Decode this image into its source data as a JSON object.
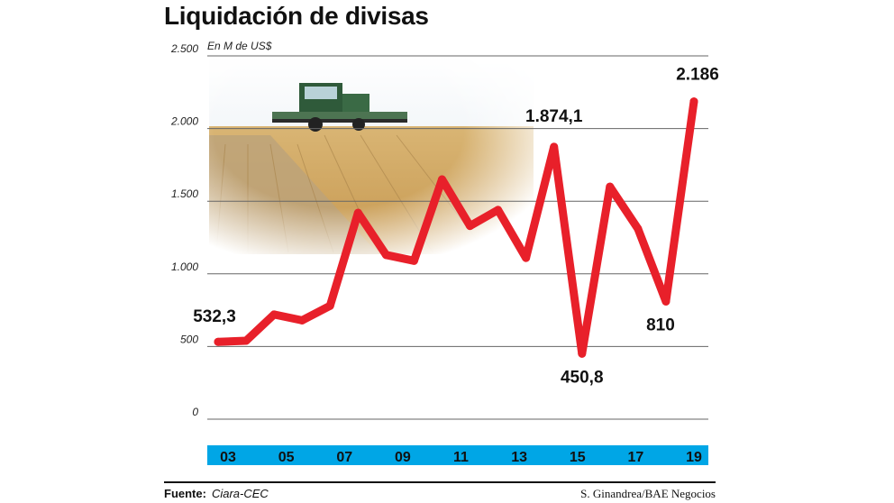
{
  "title": "Liquidación de divisas",
  "unit": "En M de US$",
  "source": {
    "label": "Fuente:",
    "value": "Ciara-CEC"
  },
  "credit": "S. Ginandrea/BAE Negocios",
  "colors": {
    "line": "#e8202a",
    "axis_band": "#00a6e6",
    "grid": "#666666"
  },
  "chart_data": {
    "type": "line",
    "title": "Liquidación de divisas",
    "ylabel": "En M de US$",
    "ylim": [
      0,
      2500
    ],
    "yticks": [
      0,
      500,
      1000,
      1500,
      2000,
      2500
    ],
    "ytick_labels": [
      "0",
      "500",
      "1.000",
      "1.500",
      "2.000",
      "2.500"
    ],
    "x_tick_labels": [
      "03",
      "05",
      "07",
      "09",
      "11",
      "13",
      "15",
      "17",
      "19"
    ],
    "grid": true,
    "series": [
      {
        "values": [
          532.3,
          540,
          720,
          680,
          780,
          1420,
          1130,
          1090,
          1650,
          1330,
          1440,
          1110,
          1874.1,
          450.8,
          1600,
          1310,
          810,
          2186
        ]
      }
    ],
    "data_labels": [
      {
        "index": 0,
        "text": "532,3"
      },
      {
        "index": 12,
        "text": "1.874,1"
      },
      {
        "index": 13,
        "text": "450,8"
      },
      {
        "index": 16,
        "text": "810"
      },
      {
        "index": 17,
        "text": "2.186"
      }
    ]
  }
}
